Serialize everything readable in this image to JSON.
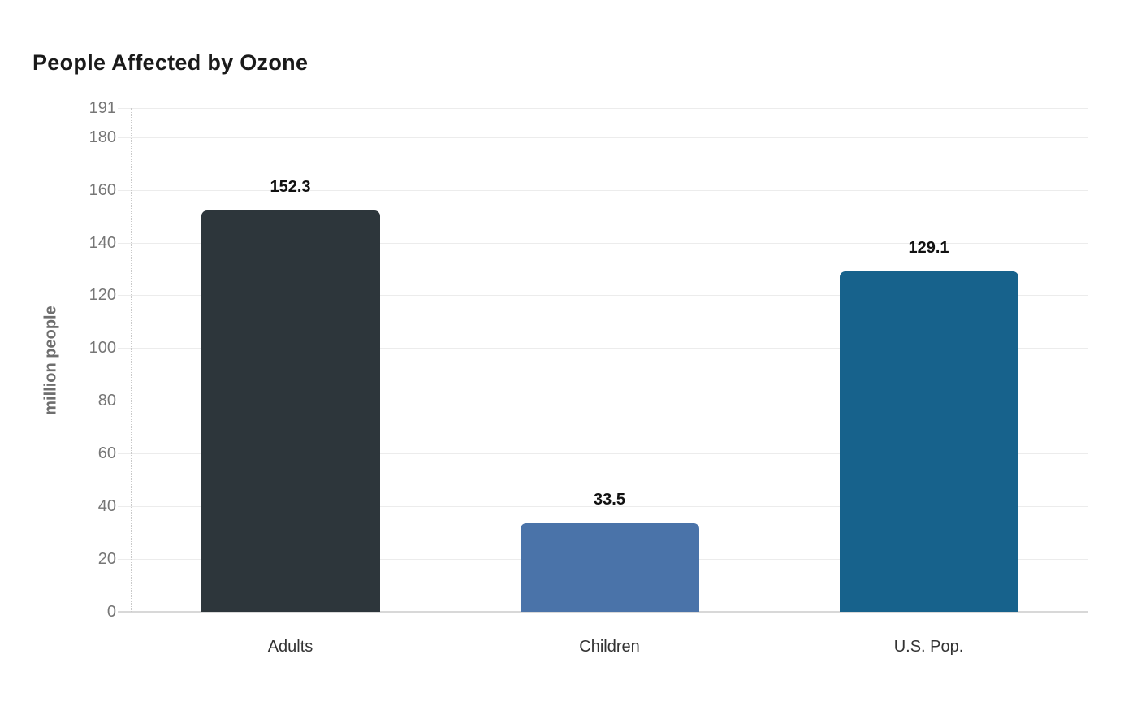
{
  "chart_data": {
    "type": "bar",
    "title": "People Affected by Ozone",
    "ylabel": "million people",
    "xlabel": "",
    "categories": [
      "Adults",
      "Children",
      "U.S. Pop."
    ],
    "values": [
      152.3,
      33.5,
      129.1
    ],
    "value_labels": [
      "152.3",
      "33.5",
      "129.1"
    ],
    "bar_colors": [
      "#2d363b",
      "#4a73a9",
      "#17628c"
    ],
    "ylim": [
      0,
      191
    ],
    "yticks": [
      0,
      20,
      40,
      60,
      80,
      100,
      120,
      140,
      160,
      180,
      191
    ],
    "grid": "horizontal-only",
    "legend": "none",
    "colors": {
      "background": "#ffffff",
      "title": "#1a1a1a",
      "grid": "#ececec",
      "axis_line": "#d8d8d8",
      "axis_dotted": "#c9c9c9",
      "y_tick_label": "#767676",
      "x_tick_label": "#333333",
      "value_label": "#111111",
      "y_axis_title": "#6e6e6e"
    }
  }
}
